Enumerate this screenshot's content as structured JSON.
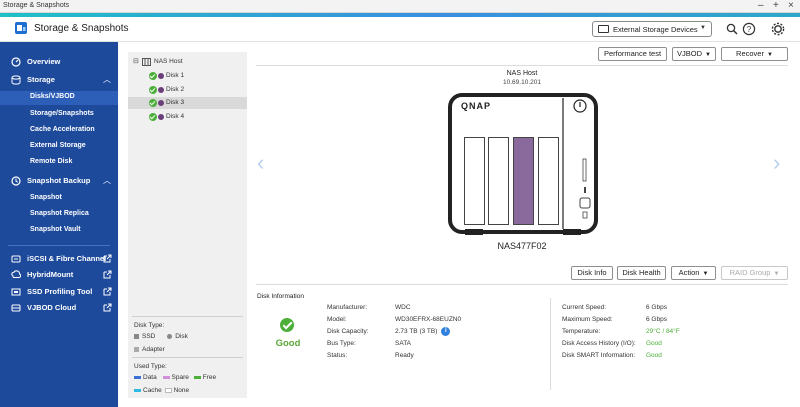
{
  "window": {
    "title": "Storage & Snapshots",
    "controls": [
      "–",
      "+",
      "×"
    ]
  },
  "app": {
    "title": "Storage & Snapshots"
  },
  "header": {
    "external_devices_label": "External Storage Devices",
    "icons": [
      "search-icon",
      "help-icon",
      "settings-icon"
    ]
  },
  "sidebar": {
    "overview": "Overview",
    "storage": "Storage",
    "storage_items": [
      "Disks/VJBOD",
      "Storage/Snapshots",
      "Cache Acceleration",
      "External Storage",
      "Remote Disk"
    ],
    "snapshot_backup": "Snapshot Backup",
    "snapshot_items": [
      "Snapshot",
      "Snapshot Replica",
      "Snapshot Vault"
    ],
    "iscsi": "iSCSI & Fibre Channel",
    "hybridmount": "HybridMount",
    "ssd_tool": "SSD Profiling Tool",
    "vjbod_cloud": "VJBOD Cloud"
  },
  "tree": {
    "root": "NAS Host",
    "disks": [
      "Disk 1",
      "Disk 2",
      "Disk 3",
      "Disk 4"
    ],
    "selected_index": 2
  },
  "legend": {
    "disk_type_title": "Disk Type:",
    "disk_types": [
      "SSD",
      "Disk",
      "Adapter"
    ],
    "used_type_title": "Used Type:",
    "used_types": [
      "Data",
      "Spare",
      "Free",
      "Cache",
      "None"
    ],
    "colors": {
      "data": "#3d6fd6",
      "spare": "#d08fd8",
      "free": "#4caf3a",
      "cache": "#2fb9e3",
      "none": "#ffffff"
    }
  },
  "toolbar": {
    "performance_test": "Performance test",
    "vjbod": "VJBOD",
    "recover": "Recover"
  },
  "nas": {
    "host_label": "NAS Host",
    "ip": "10.69.10.201",
    "brand": "QNAP",
    "model": "NAS477F02",
    "bays": 4,
    "selected_bay": 3,
    "bay_selected_color": "#8a6a9c"
  },
  "actions": {
    "disk_info": "Disk Info",
    "disk_health": "Disk Health",
    "action": "Action",
    "raid_group": "RAID Group"
  },
  "disk_info": {
    "title": "Disk Information",
    "status_summary": "Good",
    "left": [
      {
        "label": "Manufacturer:",
        "value": "WDC"
      },
      {
        "label": "Model:",
        "value": "WD30EFRX-68EUZN0"
      },
      {
        "label": "Disk Capacity:",
        "value": "2.73 TB (3 TB)"
      },
      {
        "label": "Bus Type:",
        "value": "SATA"
      },
      {
        "label": "Status:",
        "value": "Ready"
      }
    ],
    "right": [
      {
        "label": "Current Speed:",
        "value": "6 Gbps"
      },
      {
        "label": "Maximum Speed:",
        "value": "6 Gbps"
      },
      {
        "label": "Temperature:",
        "value": "29°C / 84°F"
      },
      {
        "label": "Disk Access History (I/O):",
        "value": "Good"
      },
      {
        "label": "Disk SMART Information:",
        "value": "Good"
      }
    ]
  }
}
